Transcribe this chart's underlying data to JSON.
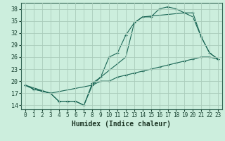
{
  "xlabel": "Humidex (Indice chaleur)",
  "bg_color": "#cceedd",
  "grid_color": "#aaccbb",
  "line_color": "#1a6655",
  "xlim": [
    -0.5,
    23.5
  ],
  "ylim": [
    13,
    39.5
  ],
  "yticks": [
    14,
    17,
    20,
    23,
    26,
    29,
    32,
    35,
    38
  ],
  "xticks": [
    0,
    1,
    2,
    3,
    4,
    5,
    6,
    7,
    8,
    9,
    10,
    11,
    12,
    13,
    14,
    15,
    16,
    17,
    18,
    19,
    20,
    21,
    22,
    23
  ],
  "line1_x": [
    0,
    1,
    2,
    3,
    4,
    5,
    6,
    7,
    8,
    9,
    10,
    11,
    12,
    13,
    14,
    15,
    16,
    17,
    18,
    19,
    20,
    21,
    22,
    23
  ],
  "line1_y": [
    19,
    18,
    17.5,
    17,
    15,
    15,
    15,
    14,
    19.5,
    21,
    26,
    27,
    31.5,
    34.5,
    36,
    36,
    38,
    38.5,
    38,
    37,
    37,
    31,
    27,
    25.5
  ],
  "line2_x": [
    0,
    1,
    2,
    3,
    4,
    5,
    6,
    7,
    8,
    9,
    10,
    11,
    12,
    13,
    14,
    15,
    16,
    17,
    18,
    19,
    20,
    21,
    22,
    23
  ],
  "line2_y": [
    19,
    18,
    17.5,
    17,
    15,
    15,
    15,
    14,
    19,
    20,
    20,
    21,
    21.5,
    22,
    22.5,
    23,
    23.5,
    24,
    24.5,
    25,
    25.5,
    26,
    26,
    25.5
  ],
  "line3_x": [
    0,
    3,
    8,
    9,
    12,
    13,
    14,
    19,
    20,
    21,
    22,
    23
  ],
  "line3_y": [
    19,
    17,
    19,
    21,
    26,
    34.5,
    36,
    37,
    36,
    31,
    27,
    25.5
  ]
}
